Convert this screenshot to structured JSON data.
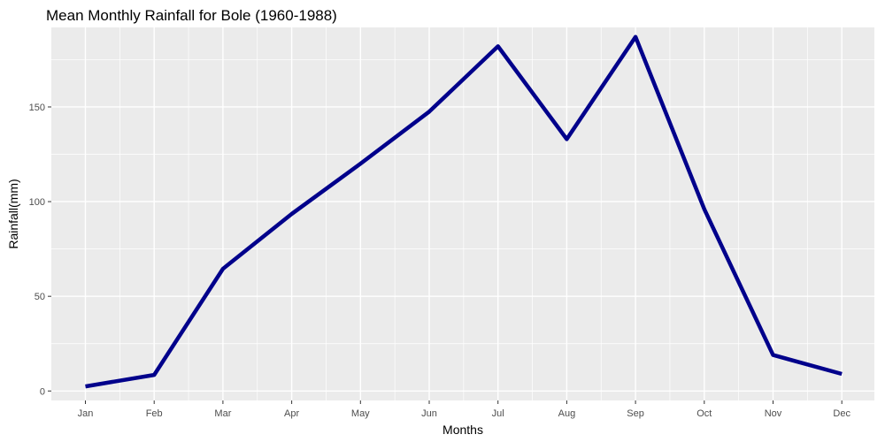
{
  "chart_data": {
    "type": "line",
    "title": "Mean Monthly Rainfall for Bole (1960-1988)",
    "xlabel": "Months",
    "ylabel": "Rainfall(mm)",
    "categories": [
      "Jan",
      "Feb",
      "Mar",
      "Apr",
      "May",
      "Jun",
      "Jul",
      "Aug",
      "Sep",
      "Oct",
      "Nov",
      "Dec"
    ],
    "series": [
      {
        "values": [
          2.4,
          8.5,
          64.5,
          93.5,
          120,
          147.5,
          182,
          133,
          187,
          96,
          19,
          9
        ],
        "color": "#00008b"
      }
    ],
    "ylim": [
      -5,
      192
    ],
    "yticks": [
      0,
      50,
      100,
      150
    ],
    "ytick_labels": [
      "0",
      "50",
      "100",
      "150"
    ],
    "panel_background": "#ebebeb",
    "grid_color": "#ffffff",
    "grid": true,
    "legend": "none"
  }
}
